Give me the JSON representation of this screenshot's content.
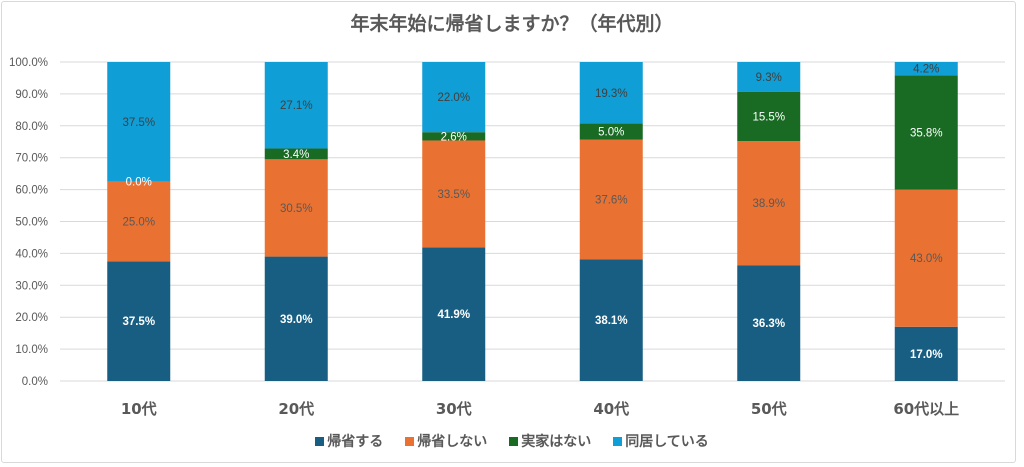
{
  "chart_data": {
    "type": "bar",
    "stacked": true,
    "percent": true,
    "title": "年末年始に帰省しますか？（年代別）",
    "xlabel": "",
    "ylabel": "",
    "ylim": [
      0,
      100
    ],
    "yticks": [
      "0.0%",
      "10.0%",
      "20.0%",
      "30.0%",
      "40.0%",
      "50.0%",
      "60.0%",
      "70.0%",
      "80.0%",
      "90.0%",
      "100.0%"
    ],
    "grid": true,
    "legend_position": "bottom",
    "categories": [
      "10代",
      "20代",
      "30代",
      "40代",
      "50代",
      "60代以上"
    ],
    "series": [
      {
        "name": "帰省する",
        "color": "#175e82",
        "label_color": "#ffffff",
        "label_bold": true,
        "values": [
          37.5,
          39.0,
          41.9,
          38.1,
          36.3,
          17.0
        ],
        "labels": [
          "37.5%",
          "39.0%",
          "41.9%",
          "38.1%",
          "36.3%",
          "17.0%"
        ]
      },
      {
        "name": "帰省しない",
        "color": "#e97132",
        "label_color": "#595959",
        "label_bold": false,
        "values": [
          25.0,
          30.5,
          33.5,
          37.6,
          38.9,
          43.0
        ],
        "labels": [
          "25.0%",
          "30.5%",
          "33.5%",
          "37.6%",
          "38.9%",
          "43.0%"
        ]
      },
      {
        "name": "実家はない",
        "color": "#196b24",
        "label_color": "#ffffff",
        "label_bold": false,
        "values": [
          0.0,
          3.4,
          2.6,
          5.0,
          15.5,
          35.8
        ],
        "labels": [
          "0.0%",
          "3.4%",
          "2.6%",
          "5.0%",
          "15.5%",
          "35.8%"
        ]
      },
      {
        "name": "同居している",
        "color": "#0f9ed5",
        "label_color": "#404040",
        "label_bold": false,
        "values": [
          37.5,
          27.1,
          22.0,
          19.3,
          9.3,
          4.2
        ],
        "labels": [
          "37.5%",
          "27.1%",
          "22.0%",
          "19.3%",
          "9.3%",
          "4.2%"
        ]
      }
    ]
  }
}
